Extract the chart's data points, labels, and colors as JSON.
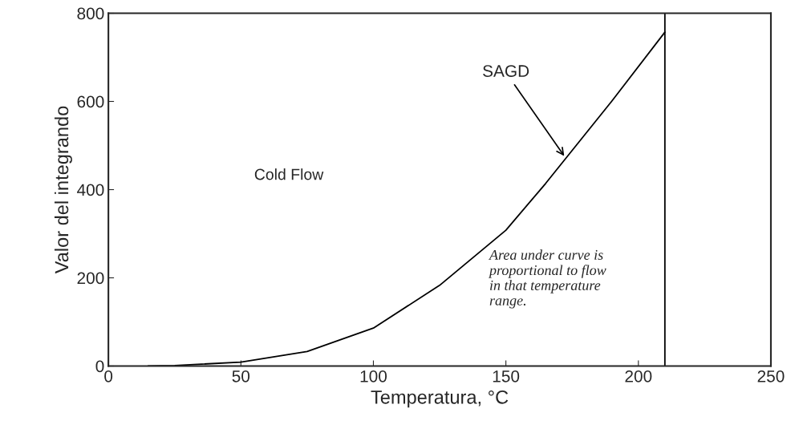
{
  "chart_data": {
    "type": "line",
    "xlabel": "Temperatura, °C",
    "ylabel": "Valor del integrando",
    "x": [
      15,
      25,
      50,
      75,
      100,
      125,
      150,
      165,
      190,
      210
    ],
    "values": [
      0,
      1,
      9,
      33,
      86,
      183,
      308,
      414,
      601,
      757
    ],
    "color": "#000000",
    "xlim": [
      0,
      250
    ],
    "ylim": [
      0,
      800
    ],
    "xticks": [
      0,
      50,
      100,
      150,
      200,
      250
    ],
    "yticks": [
      0,
      200,
      400,
      600,
      800
    ],
    "grid": false,
    "marker": "none",
    "line_style": "solid",
    "ref_lines": [
      {
        "axis": "x",
        "value": 210,
        "color": "#000000"
      }
    ],
    "annotations": [
      "SAGD",
      "Cold Flow",
      "Area under curve is\nproportional to flow\nin that temperature\nrange."
    ]
  }
}
